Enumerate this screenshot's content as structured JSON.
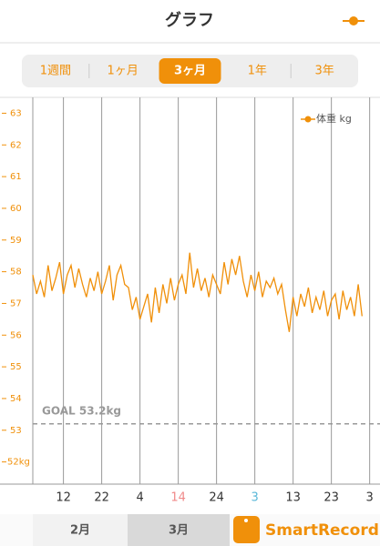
{
  "header": {
    "title": "グラフ"
  },
  "tabs": [
    "1週間",
    "1ヶ月",
    "3ヶ月",
    "1年",
    "3年"
  ],
  "selected_tab": 2,
  "month_tabs": [
    "2月",
    "3月"
  ],
  "selected_month": 1,
  "brand": "SmartRecord",
  "chart_data": {
    "type": "line",
    "x": [
      0,
      1,
      2,
      3,
      4,
      5,
      6,
      7,
      8,
      9,
      10,
      11,
      12,
      13,
      14,
      15,
      16,
      17,
      18,
      19,
      20,
      21,
      22,
      23,
      24,
      25,
      26,
      27,
      28,
      29,
      30,
      31,
      32,
      33,
      34,
      35,
      36,
      37,
      38,
      39,
      40,
      41,
      42,
      43,
      44,
      45,
      46,
      47,
      48,
      49,
      50,
      51,
      52,
      53,
      54,
      55,
      56,
      57,
      58,
      59,
      60,
      61,
      62,
      63,
      64,
      65,
      66,
      67,
      68,
      69,
      70,
      71,
      72,
      73,
      74,
      75,
      76,
      77,
      78,
      79,
      80,
      81,
      82,
      83,
      84,
      85,
      86
    ],
    "series": [
      {
        "name": "体重 kg",
        "color": "#f0900a",
        "values": [
          57.9,
          57.3,
          57.7,
          57.2,
          58.2,
          57.4,
          57.8,
          58.3,
          57.3,
          57.9,
          58.2,
          57.5,
          58.1,
          57.6,
          57.2,
          57.8,
          57.4,
          58.0,
          57.3,
          57.7,
          58.2,
          57.1,
          57.9,
          58.2,
          57.6,
          57.5,
          56.8,
          57.2,
          56.5,
          56.9,
          57.3,
          56.4,
          57.5,
          56.7,
          57.6,
          57.0,
          57.8,
          57.1,
          57.6,
          57.9,
          57.3,
          58.6,
          57.5,
          58.1,
          57.4,
          57.8,
          57.2,
          57.9,
          57.6,
          57.3,
          58.3,
          57.6,
          58.4,
          57.9,
          58.5,
          57.7,
          57.2,
          57.9,
          57.4,
          58.0,
          57.2,
          57.7,
          57.5,
          57.8,
          57.3,
          57.6,
          56.8,
          56.1,
          57.2,
          56.6,
          57.3,
          56.9,
          57.5,
          56.7,
          57.2,
          56.8,
          57.4,
          56.6,
          57.1,
          57.3,
          56.5,
          57.4,
          56.8,
          57.2,
          56.6,
          57.6,
          56.6
        ]
      }
    ],
    "xlim": [
      0,
      90.7
    ],
    "xticks": [
      {
        "value": 8,
        "label": "12"
      },
      {
        "value": 18,
        "label": "22"
      },
      {
        "value": 28,
        "label": "4"
      },
      {
        "value": 38,
        "label": "14",
        "color": "#f08a8a"
      },
      {
        "value": 48,
        "label": "24"
      },
      {
        "value": 58,
        "label": "3",
        "color": "#5bb8d8"
      },
      {
        "value": 68,
        "label": "13"
      },
      {
        "value": 78,
        "label": "23"
      },
      {
        "value": 88,
        "label": "3"
      }
    ],
    "ylim": [
      51.3,
      63.5
    ],
    "yticks": [
      {
        "value": 52,
        "label": "52kg"
      },
      53,
      54,
      55,
      56,
      57,
      58,
      59,
      60,
      61,
      62,
      63
    ],
    "xgrid": true,
    "legend": "top-right",
    "goal": {
      "value": 53.2,
      "label": "GOAL 53.2kg"
    }
  }
}
